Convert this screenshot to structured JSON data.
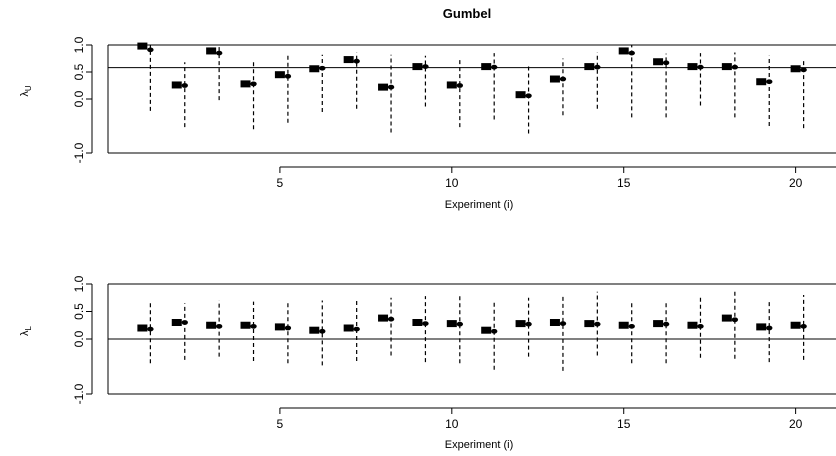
{
  "chart_data": [
    {
      "type": "scatter",
      "title": "Gumbel",
      "xlabel": "Experiment (i)",
      "ylabel": "λU",
      "ylabel_main": "λ",
      "ylabel_sub": "U",
      "xlim": [
        0,
        21
      ],
      "ylim": [
        -1.0,
        1.0
      ],
      "xticks": [
        "5",
        "10",
        "15",
        "20"
      ],
      "yticks": [
        "1.0",
        "0.5",
        "0.0",
        "-1.0"
      ],
      "hline": 0.58,
      "x": [
        1,
        2,
        3,
        4,
        5,
        6,
        7,
        8,
        9,
        10,
        11,
        12,
        13,
        14,
        15,
        16,
        17,
        18,
        19,
        20
      ],
      "squares": [
        0.98,
        0.26,
        0.89,
        0.28,
        0.45,
        0.56,
        0.73,
        0.22,
        0.6,
        0.26,
        0.6,
        0.08,
        0.37,
        0.6,
        0.89,
        0.69,
        0.6,
        0.6,
        0.32,
        0.56
      ],
      "dots": [
        0.91,
        0.25,
        0.85,
        0.28,
        0.42,
        0.57,
        0.7,
        0.22,
        0.6,
        0.25,
        0.59,
        0.06,
        0.37,
        0.59,
        0.85,
        0.67,
        0.59,
        0.59,
        0.32,
        0.54
      ],
      "intervals": [
        [
          -0.22,
          1.0
        ],
        [
          -0.52,
          0.68
        ],
        [
          -0.02,
          1.0
        ],
        [
          -0.56,
          0.68
        ],
        [
          -0.44,
          0.8
        ],
        [
          -0.24,
          0.82
        ],
        [
          -0.18,
          0.86
        ],
        [
          -0.62,
          0.82
        ],
        [
          -0.14,
          0.8
        ],
        [
          -0.52,
          0.72
        ],
        [
          -0.38,
          0.85
        ],
        [
          -0.64,
          0.63
        ],
        [
          -0.3,
          0.75
        ],
        [
          -0.18,
          0.86
        ],
        [
          -0.34,
          1.0
        ],
        [
          -0.34,
          0.84
        ],
        [
          -0.12,
          0.85
        ],
        [
          -0.34,
          0.86
        ],
        [
          -0.5,
          0.8
        ],
        [
          -0.54,
          0.75
        ]
      ]
    },
    {
      "type": "scatter",
      "title": "",
      "xlabel": "Experiment (i)",
      "ylabel": "λL",
      "ylabel_main": "λ",
      "ylabel_sub": "L",
      "xlim": [
        0,
        21
      ],
      "ylim": [
        -1.0,
        1.0
      ],
      "xticks": [
        "5",
        "10",
        "15",
        "20"
      ],
      "yticks": [
        "1.0",
        "0.5",
        "0.0",
        "-1.0"
      ],
      "hline": 0.0,
      "x": [
        1,
        2,
        3,
        4,
        5,
        6,
        7,
        8,
        9,
        10,
        11,
        12,
        13,
        14,
        15,
        16,
        17,
        18,
        19,
        20
      ],
      "squares": [
        0.2,
        0.3,
        0.25,
        0.25,
        0.22,
        0.16,
        0.2,
        0.38,
        0.3,
        0.28,
        0.16,
        0.28,
        0.3,
        0.28,
        0.25,
        0.28,
        0.25,
        0.38,
        0.22,
        0.25
      ],
      "dots": [
        0.18,
        0.3,
        0.23,
        0.23,
        0.2,
        0.14,
        0.18,
        0.36,
        0.28,
        0.27,
        0.14,
        0.27,
        0.28,
        0.27,
        0.23,
        0.27,
        0.23,
        0.35,
        0.2,
        0.23
      ],
      "intervals": [
        [
          -0.44,
          0.7
        ],
        [
          -0.38,
          0.65
        ],
        [
          -0.32,
          0.7
        ],
        [
          -0.4,
          0.68
        ],
        [
          -0.44,
          0.7
        ],
        [
          -0.48,
          0.7
        ],
        [
          -0.4,
          0.72
        ],
        [
          -0.3,
          0.75
        ],
        [
          -0.42,
          0.78
        ],
        [
          -0.44,
          0.8
        ],
        [
          -0.56,
          0.66
        ],
        [
          -0.32,
          0.75
        ],
        [
          -0.58,
          0.78
        ],
        [
          -0.3,
          0.86
        ],
        [
          -0.44,
          0.7
        ],
        [
          -0.44,
          0.66
        ],
        [
          -0.34,
          0.76
        ],
        [
          -0.36,
          0.88
        ],
        [
          -0.42,
          0.7
        ],
        [
          -0.38,
          0.8
        ]
      ]
    }
  ]
}
